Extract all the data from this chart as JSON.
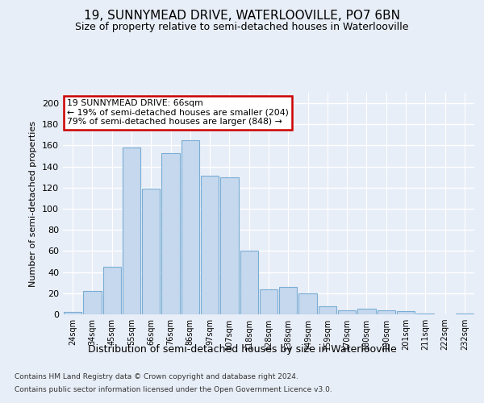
{
  "title": "19, SUNNYMEAD DRIVE, WATERLOOVILLE, PO7 6BN",
  "subtitle": "Size of property relative to semi-detached houses in Waterlooville",
  "xlabel": "Distribution of semi-detached houses by size in Waterlooville",
  "ylabel": "Number of semi-detached properties",
  "footer1": "Contains HM Land Registry data © Crown copyright and database right 2024.",
  "footer2": "Contains public sector information licensed under the Open Government Licence v3.0.",
  "categories": [
    "24sqm",
    "34sqm",
    "45sqm",
    "55sqm",
    "66sqm",
    "76sqm",
    "86sqm",
    "97sqm",
    "107sqm",
    "118sqm",
    "128sqm",
    "138sqm",
    "149sqm",
    "159sqm",
    "170sqm",
    "180sqm",
    "190sqm",
    "201sqm",
    "211sqm",
    "222sqm",
    "232sqm"
  ],
  "values": [
    2,
    22,
    45,
    158,
    119,
    153,
    165,
    131,
    130,
    60,
    24,
    26,
    20,
    8,
    4,
    5,
    4,
    3,
    1,
    0,
    1
  ],
  "bar_color": "#c5d8ee",
  "bar_edge_color": "#7aadd4",
  "annotation_title": "19 SUNNYMEAD DRIVE: 66sqm",
  "annotation_line1": "← 19% of semi-detached houses are smaller (204)",
  "annotation_line2": "79% of semi-detached houses are larger (848) →",
  "annotation_box_color": "white",
  "annotation_box_edge": "#cc0000",
  "ylim": [
    0,
    210
  ],
  "yticks": [
    0,
    20,
    40,
    60,
    80,
    100,
    120,
    140,
    160,
    180,
    200
  ],
  "background_color": "#e8eef7",
  "grid_color": "white",
  "title_fontsize": 11,
  "subtitle_fontsize": 9
}
